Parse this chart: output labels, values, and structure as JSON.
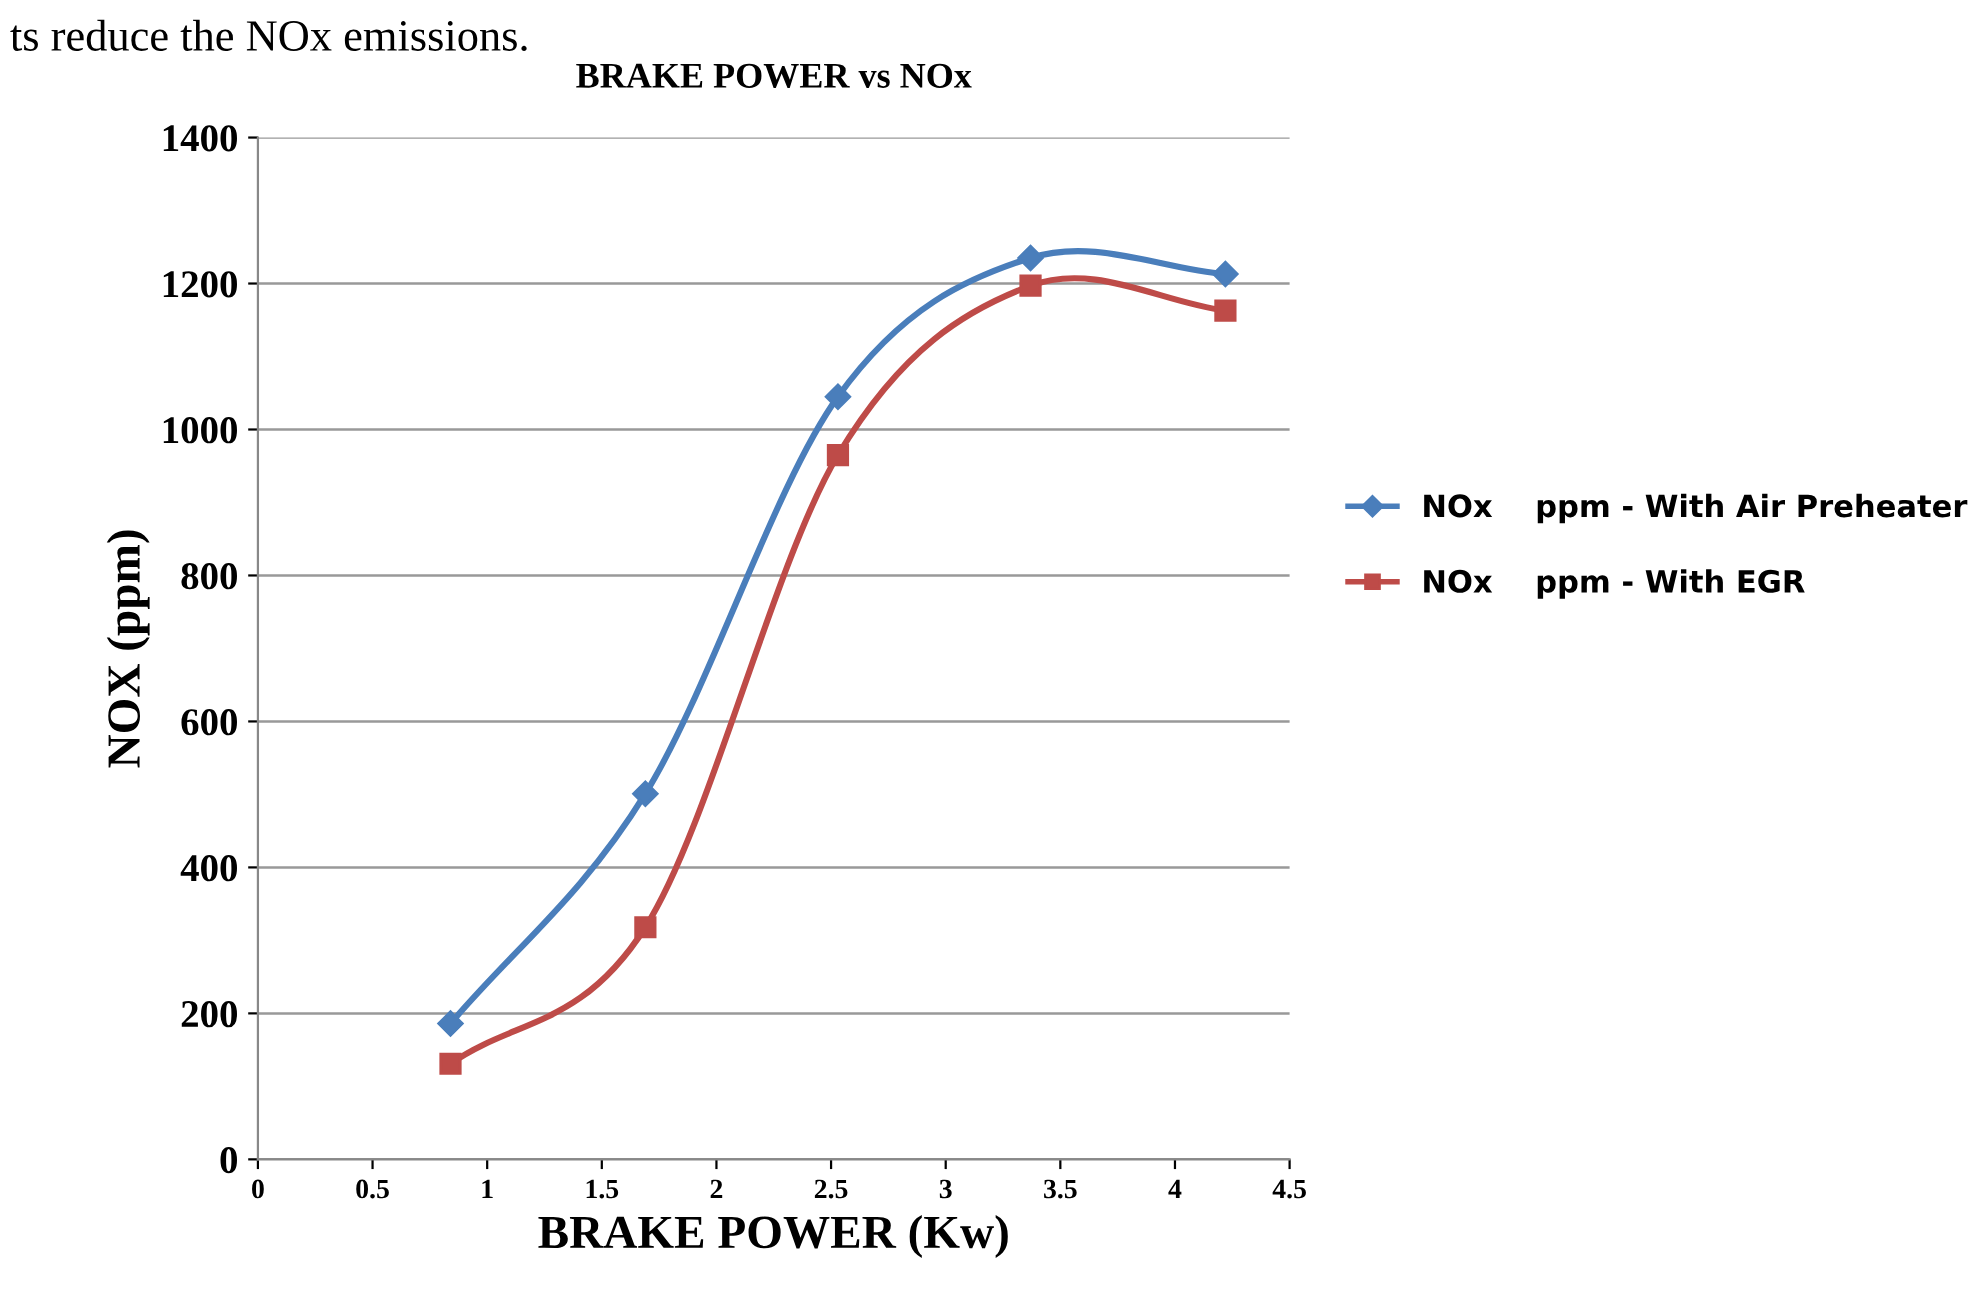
{
  "chart_data": {
    "type": "line",
    "title": "BRAKE POWER vs NOx",
    "xlabel": "BRAKE POWER (Kw)",
    "ylabel": "NOX (ppm)",
    "annotations": [
      "ts reduce the NOx emissions."
    ],
    "x": [
      0.84,
      1.69,
      2.53,
      3.37,
      4.22
    ],
    "series": [
      {
        "name": "NOx    ppm - With Air Preheater",
        "color": "#4a7ebb",
        "marker": "diamond",
        "values": [
          186,
          501,
          1045,
          1235,
          1213
        ]
      },
      {
        "name": "NOx    ppm - With EGR",
        "color": "#be4b48",
        "marker": "square",
        "values": [
          131,
          318,
          965,
          1197,
          1163
        ]
      }
    ],
    "xlim": [
      0,
      4.5
    ],
    "xticks": [
      0,
      0.5,
      1,
      1.5,
      2,
      2.5,
      3,
      3.5,
      4,
      4.5
    ],
    "ylim": [
      0,
      1400
    ],
    "yticks": [
      0,
      200,
      400,
      600,
      800,
      1000,
      1200,
      1400
    ],
    "grid": "y",
    "legend": "right",
    "line_style": "solid"
  }
}
